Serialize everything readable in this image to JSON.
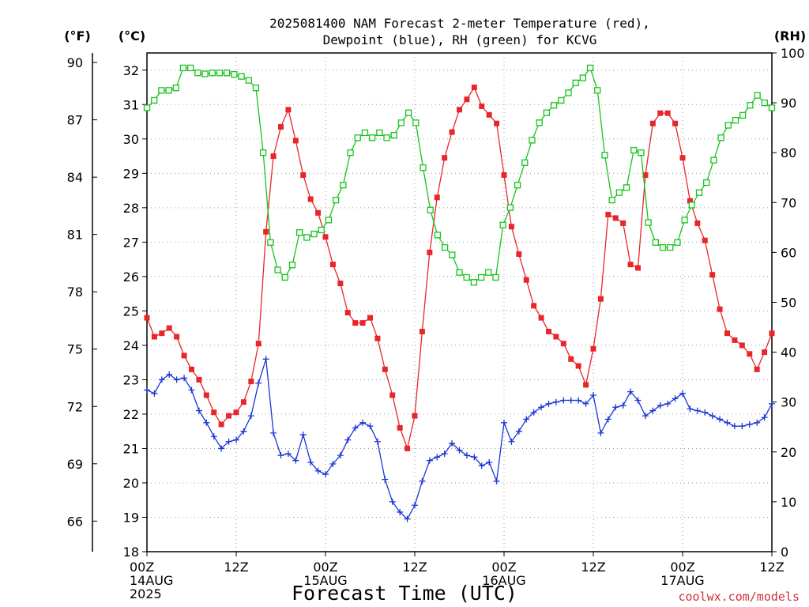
{
  "chart_data": {
    "type": "line",
    "title_lines": [
      "2025081400 NAM Forecast 2-meter Temperature (red),",
      "Dewpoint (blue), RH (green) for KCVG"
    ],
    "xlabel": "Forecast Time (UTC)",
    "credit": "coolwx.com/models",
    "units": {
      "fahrenheit": "(°F)",
      "celsius": "(°C)",
      "rh": "(RH)"
    },
    "x_hours_range": [
      0,
      84
    ],
    "x_ticks": [
      {
        "hour": 0,
        "lines": [
          "00Z",
          "14AUG",
          "2025"
        ]
      },
      {
        "hour": 12,
        "lines": [
          "12Z"
        ]
      },
      {
        "hour": 24,
        "lines": [
          "00Z",
          "15AUG"
        ]
      },
      {
        "hour": 36,
        "lines": [
          "12Z"
        ]
      },
      {
        "hour": 48,
        "lines": [
          "00Z",
          "16AUG"
        ]
      },
      {
        "hour": 60,
        "lines": [
          "12Z"
        ]
      },
      {
        "hour": 72,
        "lines": [
          "00Z",
          "17AUG"
        ]
      },
      {
        "hour": 84,
        "lines": [
          "12Z"
        ]
      }
    ],
    "y_celsius_range": [
      18,
      32.5
    ],
    "y_celsius_ticks": [
      18,
      19,
      20,
      21,
      22,
      23,
      24,
      25,
      26,
      27,
      28,
      29,
      30,
      31,
      32
    ],
    "y_fahrenheit_ticks": [
      66,
      69,
      72,
      75,
      78,
      81,
      84,
      87,
      90
    ],
    "y_rh_range": [
      0,
      100
    ],
    "y_rh_ticks": [
      0,
      10,
      20,
      30,
      40,
      50,
      60,
      70,
      80,
      90,
      100
    ],
    "grid": true,
    "series": [
      {
        "name": "Temperature",
        "color": "#e8262a",
        "marker": "filled-square",
        "axis": "celsius",
        "values": [
          24.8,
          24.25,
          24.35,
          24.5,
          24.25,
          23.7,
          23.3,
          23.0,
          22.55,
          22.05,
          21.7,
          21.95,
          22.05,
          22.35,
          22.95,
          24.05,
          27.3,
          29.5,
          30.35,
          30.85,
          29.95,
          28.95,
          28.25,
          27.85,
          27.15,
          26.35,
          25.8,
          24.95,
          24.65,
          24.65,
          24.8,
          24.2,
          23.3,
          22.55,
          21.6,
          21.0,
          21.95,
          24.4,
          26.7,
          28.3,
          29.45,
          30.2,
          30.85,
          31.15,
          31.5,
          30.95,
          30.7,
          30.45,
          28.95,
          27.45,
          26.65,
          25.9,
          25.15,
          24.8,
          24.4,
          24.25,
          24.05,
          23.6,
          23.4,
          22.85,
          23.9,
          25.35,
          27.8,
          27.7,
          27.55,
          26.35,
          26.25,
          28.95,
          30.45,
          30.75,
          30.75,
          30.45,
          29.45,
          28.2,
          27.55,
          27.05,
          26.05,
          25.05,
          24.35,
          24.15,
          24.0,
          23.75,
          23.3,
          23.8,
          24.35
        ]
      },
      {
        "name": "Dewpoint",
        "color": "#1a35d6",
        "marker": "plus",
        "axis": "celsius",
        "values": [
          22.7,
          22.6,
          23.0,
          23.15,
          23.0,
          23.05,
          22.7,
          22.1,
          21.75,
          21.35,
          21.0,
          21.2,
          21.25,
          21.5,
          21.95,
          22.9,
          23.6,
          21.45,
          20.8,
          20.85,
          20.65,
          21.4,
          20.6,
          20.35,
          20.25,
          20.55,
          20.8,
          21.25,
          21.6,
          21.75,
          21.65,
          21.2,
          20.1,
          19.45,
          19.15,
          18.95,
          19.35,
          20.05,
          20.65,
          20.75,
          20.85,
          21.15,
          20.95,
          20.8,
          20.75,
          20.5,
          20.6,
          20.05,
          21.75,
          21.2,
          21.5,
          21.85,
          22.05,
          22.2,
          22.3,
          22.35,
          22.4,
          22.4,
          22.4,
          22.3,
          22.55,
          21.45,
          21.85,
          22.2,
          22.25,
          22.65,
          22.4,
          21.95,
          22.1,
          22.25,
          22.3,
          22.45,
          22.6,
          22.15,
          22.1,
          22.05,
          21.95,
          21.85,
          21.75,
          21.65,
          21.65,
          21.7,
          21.75,
          21.9,
          22.3
        ]
      },
      {
        "name": "RH",
        "color": "#16c41d",
        "marker": "open-square",
        "axis": "rh",
        "values": [
          89,
          90.5,
          92.5,
          92.5,
          93,
          97,
          97,
          96,
          95.8,
          96,
          96,
          96,
          95.7,
          95.3,
          94.5,
          93,
          80,
          62,
          56.5,
          55,
          57.5,
          64,
          63,
          63.7,
          64.5,
          66.5,
          70.5,
          73.5,
          80,
          83,
          84,
          83,
          84,
          83,
          83.5,
          86,
          88,
          86,
          77,
          68.5,
          63.5,
          61,
          59.5,
          56,
          55,
          54,
          55,
          56,
          55,
          65.5,
          69,
          73.5,
          78,
          82.5,
          86,
          88,
          89.5,
          90.5,
          92,
          94,
          95,
          97,
          92.5,
          79.5,
          70.5,
          72,
          73,
          80.5,
          80,
          66,
          62,
          61,
          61,
          62,
          66.5,
          69.5,
          72,
          74,
          78.5,
          83,
          85.5,
          86.5,
          87.5,
          89.5,
          91.5,
          90,
          89
        ]
      }
    ]
  }
}
